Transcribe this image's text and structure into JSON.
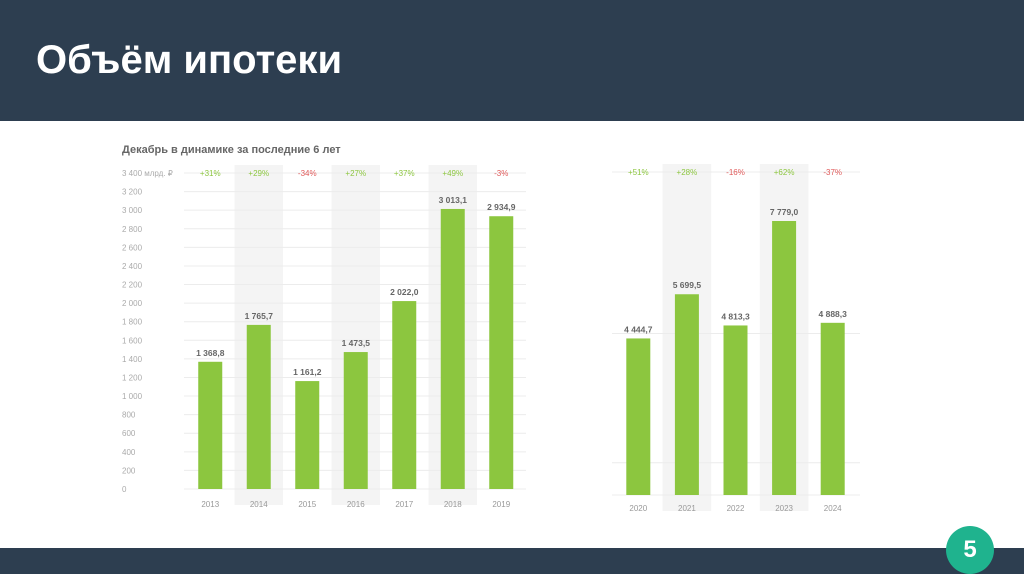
{
  "slide": {
    "title": "Объём ипотеки",
    "page_number": "5"
  },
  "colors": {
    "header": "#2d3e50",
    "bar": "#8cc63f",
    "positive": "#8cc63f",
    "negative": "#e05a5a",
    "badge": "#1fb38e",
    "shade": "#f4f4f4"
  },
  "chart_data": [
    {
      "type": "bar",
      "title": "Декабрь в динамике за последние 6 лет",
      "ylabel": "млрд. ₽",
      "top_tick_label": "3 400 млрд. ₽",
      "ylim": [
        0,
        3400
      ],
      "yticks": [
        "0",
        "200",
        "400",
        "600",
        "800",
        "1 000",
        "1 200",
        "1 400",
        "1 600",
        "1 800",
        "2 000",
        "2 200",
        "2 400",
        "2 600",
        "2 800",
        "3 000",
        "3 200"
      ],
      "categories": [
        "2013",
        "2014",
        "2015",
        "2016",
        "2017",
        "2018",
        "2019"
      ],
      "values": [
        1368.8,
        1765.7,
        1161.2,
        1473.5,
        2022.0,
        3013.1,
        2934.9
      ],
      "value_labels": [
        "1 368,8",
        "1 765,7",
        "1 161,2",
        "1 473,5",
        "2 022,0",
        "3 013,1",
        "2 934,9"
      ],
      "changes": [
        "+31%",
        "+29%",
        "-34%",
        "+27%",
        "+37%",
        "+49%",
        "-3%"
      ],
      "shaded": [
        false,
        true,
        false,
        true,
        false,
        true,
        false
      ]
    },
    {
      "type": "bar",
      "ylim": [
        0,
        9170
      ],
      "categories": [
        "2020",
        "2021",
        "2022",
        "2023",
        "2024"
      ],
      "values": [
        4444.7,
        5699.5,
        4813.3,
        7779.0,
        4888.3
      ],
      "value_labels": [
        "4 444,7",
        "5 699,5",
        "4 813,3",
        "7 779,0",
        "4 888,3"
      ],
      "changes": [
        "+51%",
        "+28%",
        "-16%",
        "+62%",
        "-37%"
      ],
      "shaded": [
        false,
        true,
        false,
        true,
        false
      ]
    }
  ]
}
